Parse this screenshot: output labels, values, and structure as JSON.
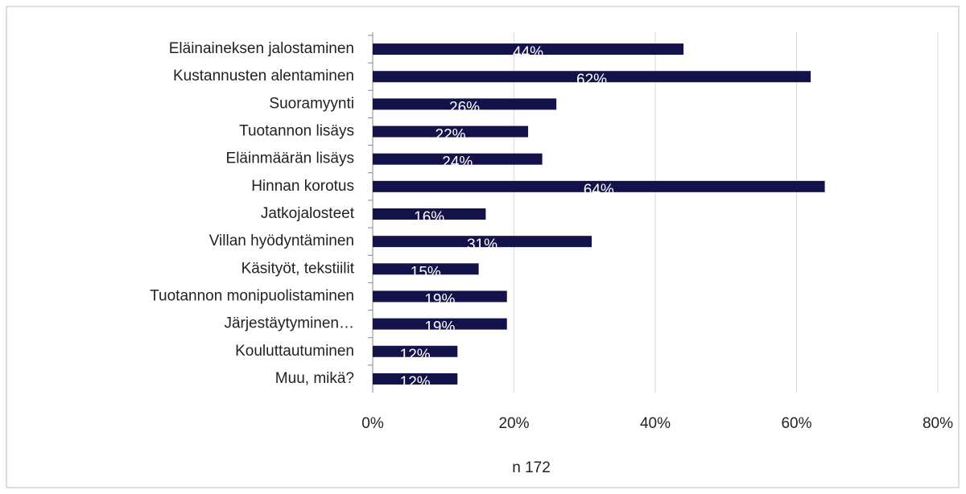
{
  "chart_data": {
    "type": "bar",
    "orientation": "horizontal",
    "categories": [
      "Eläinaineksen jalostaminen",
      "Kustannusten alentaminen",
      "Suoramyynti",
      "Tuotannon lisäys",
      "Eläinmäärän lisäys",
      "Hinnan korotus",
      "Jatkojalosteet",
      "Villan hyödyntäminen",
      "Käsityöt, tekstiilit",
      "Tuotannon monipuolistaminen",
      "Järjestäytyminen…",
      "Kouluttautuminen",
      "Muu, mikä?"
    ],
    "values": [
      44,
      62,
      26,
      22,
      24,
      64,
      16,
      31,
      15,
      19,
      19,
      12,
      12
    ],
    "value_labels": [
      "44%",
      "62%",
      "26%",
      "22%",
      "24%",
      "64%",
      "16%",
      "31%",
      "15%",
      "19%",
      "19%",
      "12%",
      "12%"
    ],
    "color": "#14124a",
    "xlim": [
      0,
      80
    ],
    "xticks": [
      {
        "value": 0,
        "label": "0%"
      },
      {
        "value": 20,
        "label": "20%"
      },
      {
        "value": 40,
        "label": "40%"
      },
      {
        "value": 60,
        "label": "60%"
      },
      {
        "value": 80,
        "label": "80%"
      }
    ],
    "grid": true,
    "xlabel": "n 172"
  }
}
